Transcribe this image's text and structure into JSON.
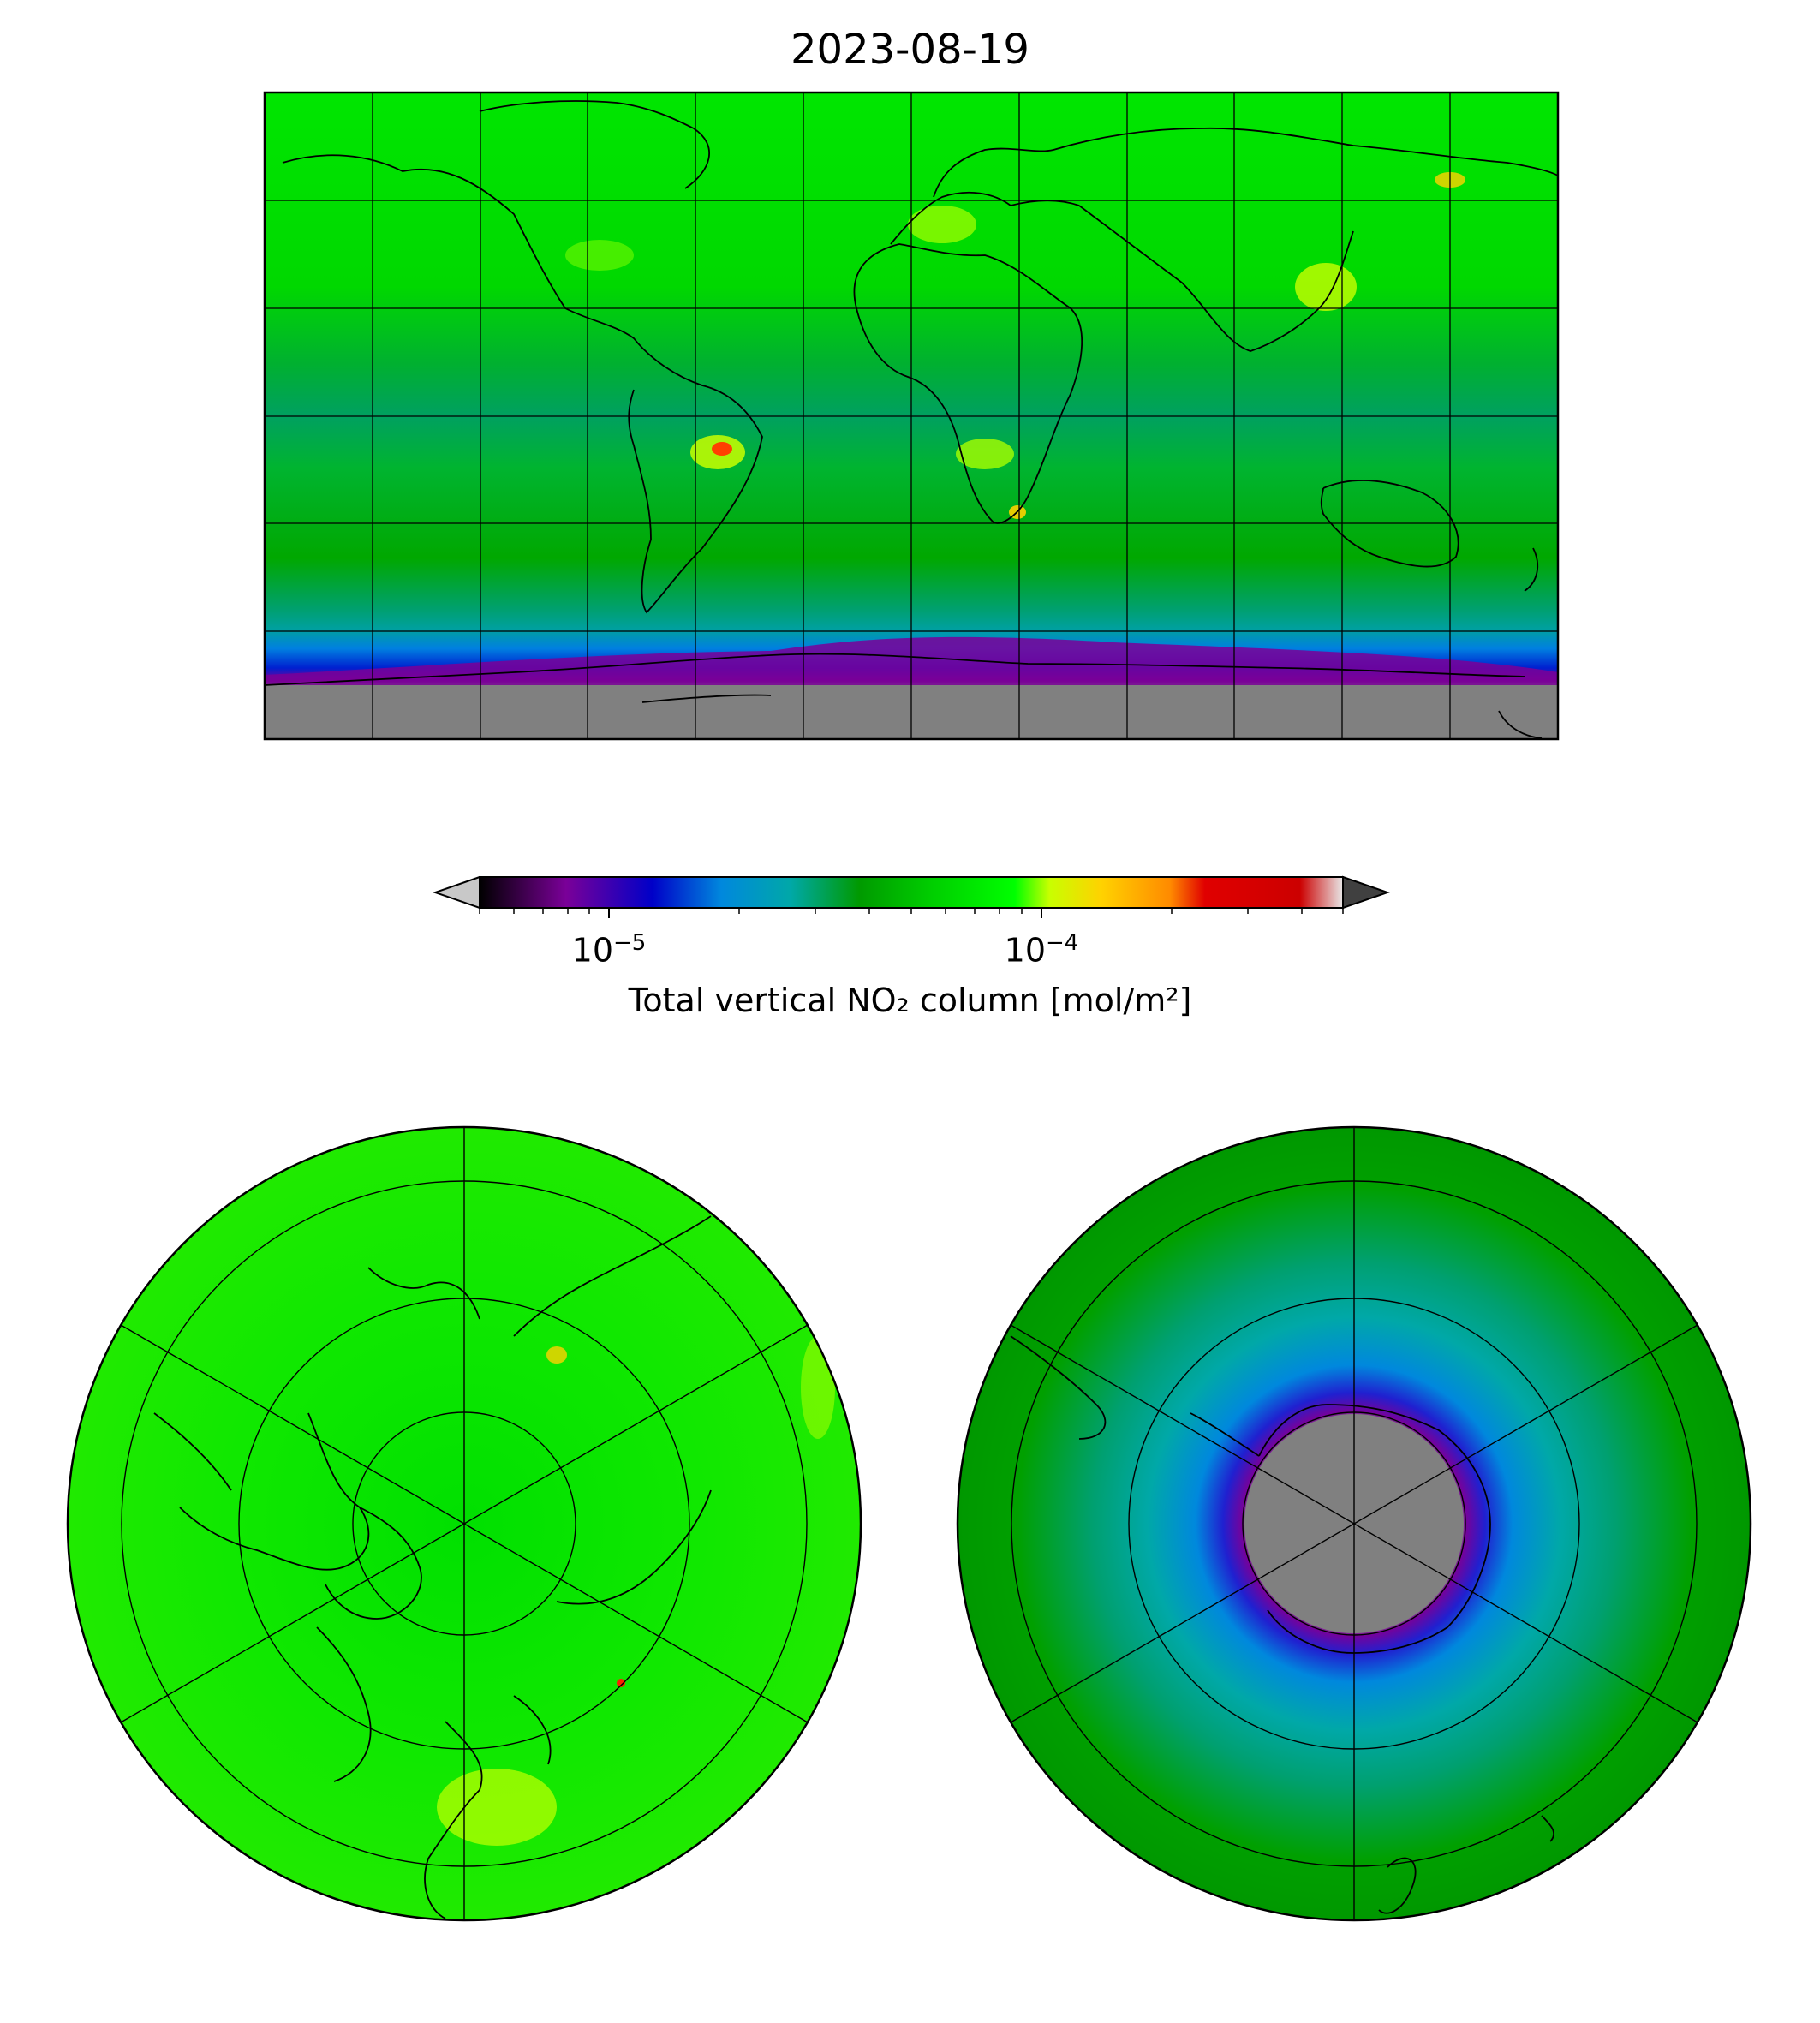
{
  "title": "2023-08-19",
  "colorbar": {
    "label": "Total vertical NO₂ column [mol/m²]",
    "scale": "log",
    "range": [
      5e-06,
      0.0005
    ],
    "ticks": [
      {
        "value": 1e-05,
        "base": "10",
        "exp": "−5"
      },
      {
        "value": 0.0001,
        "base": "10",
        "exp": "−4"
      }
    ],
    "extend": "both",
    "colors": [
      "#000000",
      "#7a0098",
      "#0000c8",
      "#0088dd",
      "#00a8a8",
      "#009a00",
      "#00cc00",
      "#00ff00",
      "#c8ff00",
      "#ffd200",
      "#ff8a00",
      "#e00000",
      "#cc0000",
      "#e8e8e8"
    ],
    "under_color": "#c8c8c8",
    "over_color": "#404040"
  },
  "panels": [
    {
      "projection": "Plate Carree",
      "extent": "global"
    },
    {
      "projection": "North Polar Stereographic"
    },
    {
      "projection": "South Polar Stereographic"
    }
  ],
  "legend_colors": {
    "background_green": "#00e600",
    "dark_green": "#00a000",
    "no_data": "#808080",
    "low_purple": "#7a0098",
    "low_blue": "#0010d0"
  }
}
